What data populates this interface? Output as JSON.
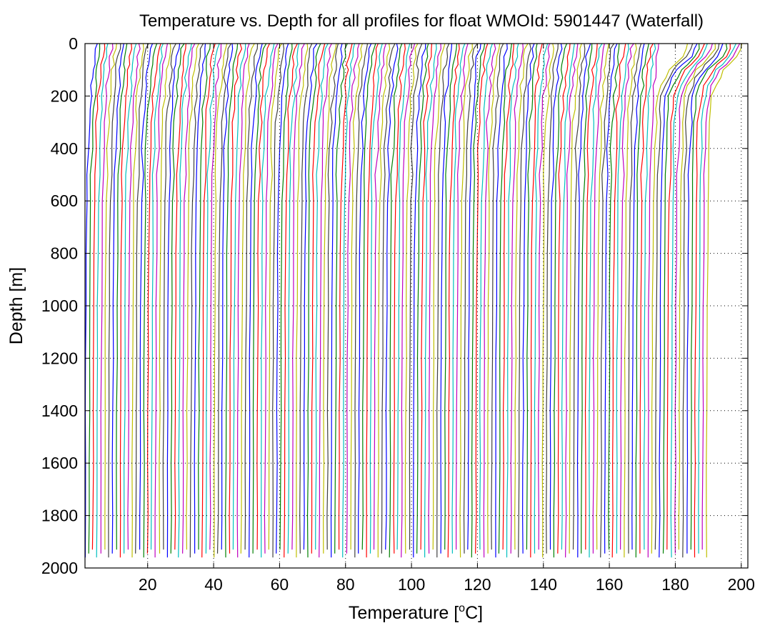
{
  "chart_data": {
    "type": "line",
    "title": "Temperature vs. Depth for all profiles for float WMOId: 5901447 (Waterfall)",
    "xlabel": "Temperature [",
    "xlabel_superscript": "o",
    "xlabel_suffix": "C]",
    "ylabel": "Depth [m]",
    "xlim": [
      1,
      202
    ],
    "ylim": [
      0,
      2000
    ],
    "y_reversed": true,
    "grid": true,
    "x_ticks": [
      20,
      40,
      60,
      80,
      100,
      120,
      140,
      160,
      180,
      200
    ],
    "x_tick_labels": [
      "20",
      "40",
      "60",
      "80",
      "100",
      "120",
      "140",
      "160",
      "180",
      "200"
    ],
    "y_ticks": [
      0,
      200,
      400,
      600,
      800,
      1000,
      1200,
      1400,
      1600,
      1800,
      2000
    ],
    "y_tick_labels": [
      "0",
      "200",
      "400",
      "600",
      "800",
      "1000",
      "1200",
      "1400",
      "1600",
      "1800",
      "2000"
    ],
    "series_colors": [
      "#0000ff",
      "#008000",
      "#ff0000",
      "#00bfbf",
      "#bf00bf",
      "#bfbf00",
      "#404040"
    ],
    "profile_depths": [
      0,
      20,
      50,
      80,
      100,
      130,
      160,
      200,
      250,
      300,
      400,
      500,
      600,
      800,
      1000,
      1200,
      1400,
      1600,
      1800,
      1960
    ],
    "profile_shapes": {
      "typical": [
        1.6,
        1.3,
        0.9,
        0.6,
        0.4,
        0.2,
        0.0,
        -0.3,
        -0.6,
        -0.8,
        -1.1,
        -1.3,
        -1.45,
        -1.6,
        -1.7,
        -1.78,
        -1.85,
        -1.9,
        -1.95,
        -2.0
      ],
      "warm_late": [
        9.0,
        8.6,
        7.5,
        5.0,
        3.5,
        2.0,
        0.9,
        -0.1,
        -0.5,
        -0.8,
        -1.1,
        -1.3,
        -1.45,
        -1.6,
        -1.7,
        -1.78,
        -1.85,
        -1.9,
        -1.95,
        -2.0
      ]
    },
    "profiles": {
      "count": 160,
      "offset_start": 3.0,
      "offset_step": 1.185,
      "warm_from_index": 145
    }
  }
}
